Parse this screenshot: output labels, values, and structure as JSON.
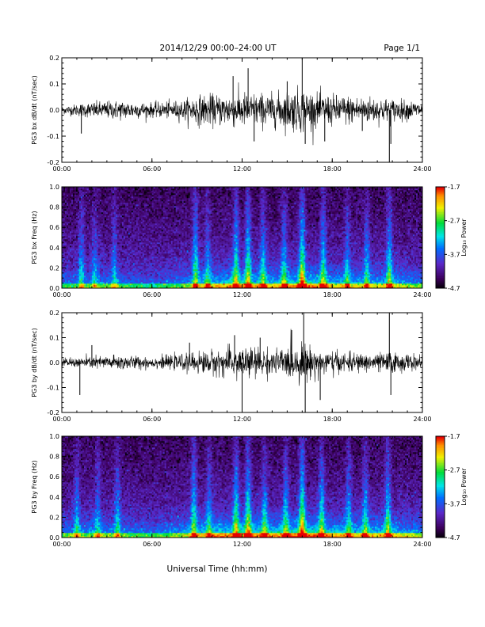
{
  "header": {
    "title": "2014/12/29  00:00–24:00 UT",
    "page": "Page 1/1"
  },
  "x_axis_title": "Universal Time (hh:mm)",
  "chart_data": [
    {
      "type": "line",
      "series_label": "PG3 bx dB/dt (nT/sec)",
      "x_ticks": [
        "00:00",
        "06:00",
        "12:00",
        "18:00",
        "24:00"
      ],
      "xlim_hours": [
        0,
        24
      ],
      "ylim": [
        -0.2,
        0.2
      ],
      "y_ticks": [
        "0.2",
        "0.1",
        "0.0",
        "-0.1",
        "-0.2"
      ],
      "y_tick_values": [
        0.2,
        0.1,
        0.0,
        -0.1,
        -0.2
      ],
      "activity_envelope": [
        {
          "hour": 0,
          "amp": 0.012
        },
        {
          "hour": 2,
          "amp": 0.025
        },
        {
          "hour": 4,
          "amp": 0.03
        },
        {
          "hour": 6,
          "amp": 0.022
        },
        {
          "hour": 8,
          "amp": 0.03
        },
        {
          "hour": 9,
          "amp": 0.045
        },
        {
          "hour": 11,
          "amp": 0.05
        },
        {
          "hour": 12,
          "amp": 0.055
        },
        {
          "hour": 14,
          "amp": 0.05
        },
        {
          "hour": 16,
          "amp": 0.07
        },
        {
          "hour": 17,
          "amp": 0.05
        },
        {
          "hour": 19,
          "amp": 0.045
        },
        {
          "hour": 21,
          "amp": 0.04
        },
        {
          "hour": 22,
          "amp": 0.035
        },
        {
          "hour": 24,
          "amp": 0.025
        }
      ],
      "spikes": [
        {
          "hour": 1.3,
          "value": -0.09
        },
        {
          "hour": 11.4,
          "value": 0.13
        },
        {
          "hour": 12.4,
          "value": 0.16
        },
        {
          "hour": 12.8,
          "value": -0.12
        },
        {
          "hour": 15.0,
          "value": 0.11
        },
        {
          "hour": 16.0,
          "value": 0.2
        },
        {
          "hour": 16.2,
          "value": -0.13
        },
        {
          "hour": 17.5,
          "value": -0.12
        },
        {
          "hour": 20.0,
          "value": -0.08
        },
        {
          "hour": 21.8,
          "value": -0.2
        },
        {
          "hour": 21.9,
          "value": -0.13
        }
      ]
    },
    {
      "type": "heatmap",
      "series_label": "PG3 bx Freq (Hz)",
      "x_ticks": [
        "00:00",
        "06:00",
        "12:00",
        "18:00",
        "24:00"
      ],
      "xlim_hours": [
        0,
        24
      ],
      "ylim": [
        0.0,
        1.0
      ],
      "y_ticks": [
        "1.0",
        "0.8",
        "0.6",
        "0.4",
        "0.2",
        "0.0"
      ],
      "y_tick_values": [
        1.0,
        0.8,
        0.6,
        0.4,
        0.2,
        0.0
      ],
      "colorbar": {
        "label": "Log₁₀ Power",
        "ticks": [
          "-1.7",
          "-2.7",
          "-3.7",
          "-4.7"
        ],
        "tick_values": [
          -1.7,
          -2.7,
          -3.7,
          -4.7
        ],
        "range": [
          -4.7,
          -1.7
        ]
      },
      "activity_envelope": [
        {
          "hour": 0,
          "level": 0.25
        },
        {
          "hour": 3,
          "level": 0.3
        },
        {
          "hour": 6,
          "level": 0.2
        },
        {
          "hour": 8,
          "level": 0.3
        },
        {
          "hour": 10,
          "level": 0.45
        },
        {
          "hour": 12,
          "level": 0.5
        },
        {
          "hour": 14,
          "level": 0.45
        },
        {
          "hour": 16,
          "level": 0.55
        },
        {
          "hour": 18,
          "level": 0.45
        },
        {
          "hour": 20,
          "level": 0.4
        },
        {
          "hour": 22,
          "level": 0.4
        },
        {
          "hour": 24,
          "level": 0.3
        }
      ],
      "bursts": [
        {
          "hour": 1.3,
          "strength": 0.5
        },
        {
          "hour": 2.2,
          "strength": 0.4
        },
        {
          "hour": 3.5,
          "strength": 0.45
        },
        {
          "hour": 8.9,
          "strength": 0.75
        },
        {
          "hour": 9.7,
          "strength": 0.5
        },
        {
          "hour": 11.6,
          "strength": 0.8
        },
        {
          "hour": 12.4,
          "strength": 0.85
        },
        {
          "hour": 13.4,
          "strength": 0.6
        },
        {
          "hour": 14.8,
          "strength": 0.6
        },
        {
          "hour": 16.0,
          "strength": 1.0
        },
        {
          "hour": 17.4,
          "strength": 0.7
        },
        {
          "hour": 19.0,
          "strength": 0.5
        },
        {
          "hour": 20.3,
          "strength": 0.55
        },
        {
          "hour": 21.8,
          "strength": 0.7
        }
      ]
    },
    {
      "type": "line",
      "series_label": "PG3 by dB/dt (nT/sec)",
      "x_ticks": [
        "00:00",
        "06:00",
        "12:00",
        "18:00",
        "24:00"
      ],
      "xlim_hours": [
        0,
        24
      ],
      "ylim": [
        -0.2,
        0.2
      ],
      "y_ticks": [
        "0.2",
        "0.1",
        "0.0",
        "-0.1",
        "-0.2"
      ],
      "y_tick_values": [
        0.2,
        0.1,
        0.0,
        -0.1,
        -0.2
      ],
      "activity_envelope": [
        {
          "hour": 0,
          "amp": 0.012
        },
        {
          "hour": 2,
          "amp": 0.02
        },
        {
          "hour": 4,
          "amp": 0.025
        },
        {
          "hour": 6,
          "amp": 0.018
        },
        {
          "hour": 8,
          "amp": 0.025
        },
        {
          "hour": 9,
          "amp": 0.035
        },
        {
          "hour": 11,
          "amp": 0.045
        },
        {
          "hour": 12,
          "amp": 0.055
        },
        {
          "hour": 14,
          "amp": 0.04
        },
        {
          "hour": 16,
          "amp": 0.06
        },
        {
          "hour": 17,
          "amp": 0.045
        },
        {
          "hour": 19,
          "amp": 0.03
        },
        {
          "hour": 21,
          "amp": 0.03
        },
        {
          "hour": 22,
          "amp": 0.035
        },
        {
          "hour": 24,
          "amp": 0.022
        }
      ],
      "spikes": [
        {
          "hour": 1.2,
          "value": -0.13
        },
        {
          "hour": 2.0,
          "value": 0.07
        },
        {
          "hour": 8.5,
          "value": 0.08
        },
        {
          "hour": 11.5,
          "value": 0.11
        },
        {
          "hour": 12.0,
          "value": -0.2
        },
        {
          "hour": 13.2,
          "value": 0.1
        },
        {
          "hour": 15.3,
          "value": 0.13
        },
        {
          "hour": 16.1,
          "value": 0.2
        },
        {
          "hour": 16.2,
          "value": -0.2
        },
        {
          "hour": 17.2,
          "value": -0.15
        },
        {
          "hour": 21.8,
          "value": 0.2
        },
        {
          "hour": 21.9,
          "value": -0.13
        }
      ]
    },
    {
      "type": "heatmap",
      "series_label": "PG3 by Freq (Hz)",
      "x_ticks": [
        "00:00",
        "06:00",
        "12:00",
        "18:00",
        "24:00"
      ],
      "xlim_hours": [
        0,
        24
      ],
      "ylim": [
        0.0,
        1.0
      ],
      "y_ticks": [
        "1.0",
        "0.8",
        "0.6",
        "0.4",
        "0.2",
        "0.0"
      ],
      "y_tick_values": [
        1.0,
        0.8,
        0.6,
        0.4,
        0.2,
        0.0
      ],
      "colorbar": {
        "label": "Log₁₀ Power",
        "ticks": [
          "-1.7",
          "-2.7",
          "-3.7",
          "-4.7"
        ],
        "tick_values": [
          -1.7,
          -2.7,
          -3.7,
          -4.7
        ],
        "range": [
          -4.7,
          -1.7
        ]
      },
      "activity_envelope": [
        {
          "hour": 0,
          "level": 0.3
        },
        {
          "hour": 3,
          "level": 0.35
        },
        {
          "hour": 6,
          "level": 0.25
        },
        {
          "hour": 8,
          "level": 0.35
        },
        {
          "hour": 10,
          "level": 0.5
        },
        {
          "hour": 12,
          "level": 0.55
        },
        {
          "hour": 14,
          "level": 0.5
        },
        {
          "hour": 16,
          "level": 0.6
        },
        {
          "hour": 18,
          "level": 0.5
        },
        {
          "hour": 20,
          "level": 0.45
        },
        {
          "hour": 22,
          "level": 0.45
        },
        {
          "hour": 24,
          "level": 0.35
        }
      ],
      "bursts": [
        {
          "hour": 1.0,
          "strength": 0.5
        },
        {
          "hour": 2.4,
          "strength": 0.45
        },
        {
          "hour": 3.7,
          "strength": 0.5
        },
        {
          "hour": 8.8,
          "strength": 0.75
        },
        {
          "hour": 9.8,
          "strength": 0.5
        },
        {
          "hour": 11.6,
          "strength": 0.8
        },
        {
          "hour": 12.4,
          "strength": 0.85
        },
        {
          "hour": 13.5,
          "strength": 0.6
        },
        {
          "hour": 14.9,
          "strength": 0.6
        },
        {
          "hour": 16.0,
          "strength": 1.0
        },
        {
          "hour": 17.3,
          "strength": 0.7
        },
        {
          "hour": 19.1,
          "strength": 0.5
        },
        {
          "hour": 20.2,
          "strength": 0.6
        },
        {
          "hour": 21.7,
          "strength": 0.7
        }
      ]
    }
  ]
}
